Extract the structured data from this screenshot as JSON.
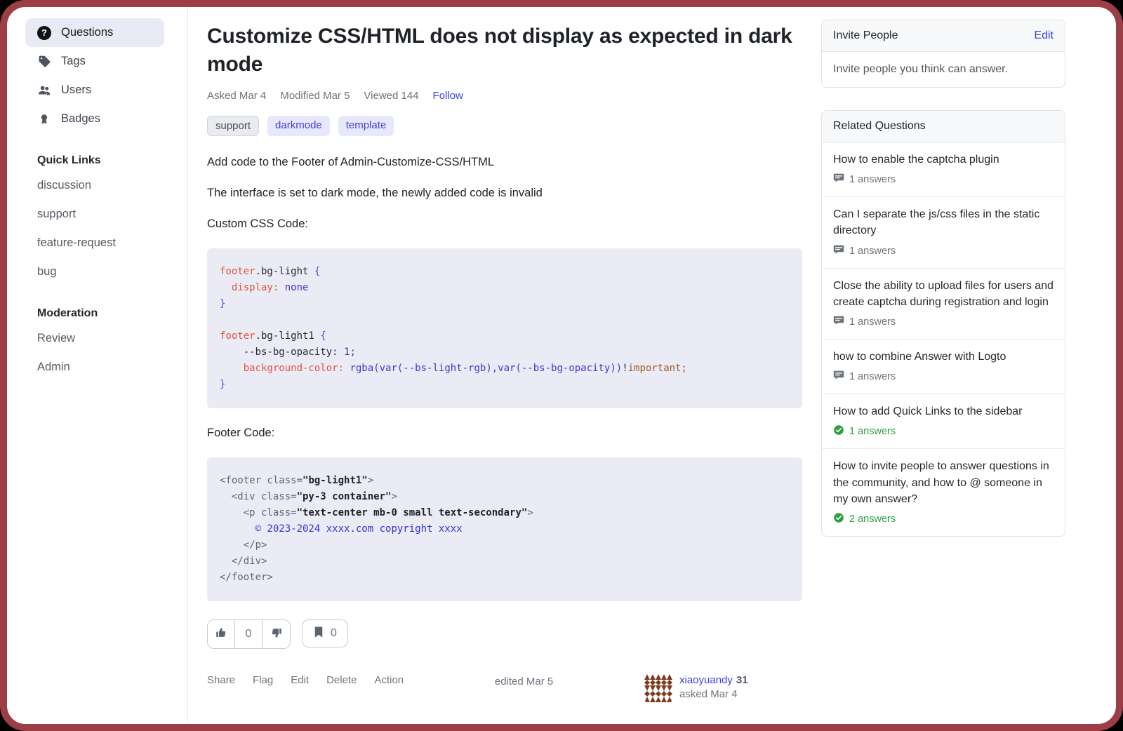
{
  "colors": {
    "accent_link": "#3a42e0",
    "frame": "#9c3e46",
    "success_green": "#2f9e44",
    "code_background": "#eaebf4",
    "active_nav_background": "#e9eaf5",
    "avatar_brown": "#7b3c22"
  },
  "sidebar": {
    "nav": [
      {
        "label": "Questions",
        "icon": "question-circle-icon",
        "active": true
      },
      {
        "label": "Tags",
        "icon": "tag-icon",
        "active": false
      },
      {
        "label": "Users",
        "icon": "users-icon",
        "active": false
      },
      {
        "label": "Badges",
        "icon": "badge-icon",
        "active": false
      }
    ],
    "sections": [
      {
        "heading": "Quick Links",
        "links": [
          "discussion",
          "support",
          "feature-request",
          "bug"
        ]
      },
      {
        "heading": "Moderation",
        "links": [
          "Review",
          "Admin"
        ]
      }
    ]
  },
  "question": {
    "title": "Customize CSS/HTML does not display as expected in dark mode",
    "meta": {
      "asked": "Asked Mar 4",
      "modified": "Modified Mar 5",
      "viewed": "Viewed 144",
      "follow": "Follow"
    },
    "tags": [
      {
        "label": "support",
        "reserved": true
      },
      {
        "label": "darkmode",
        "reserved": false
      },
      {
        "label": "template",
        "reserved": false
      }
    ],
    "body": [
      "Add code to the Footer of Admin-Customize-CSS/HTML",
      "The interface is set to dark mode, the newly added code is invalid",
      "Custom CSS Code:",
      "Footer Code:"
    ],
    "votes": {
      "like_count": "0",
      "bookmark_count": "0"
    },
    "actions": [
      "Share",
      "Flag",
      "Edit",
      "Delete",
      "Action"
    ],
    "edited": "edited Mar 5",
    "author": {
      "name": "xiaoyuandy",
      "reputation": "31",
      "asked": "asked Mar 4"
    }
  },
  "code_blocks": [
    {
      "language": "css",
      "lines": [
        [
          {
            "t": "footer",
            "c": "red"
          },
          {
            "t": ".bg-light ",
            "c": "ink"
          },
          {
            "t": "{",
            "c": "brace"
          }
        ],
        [
          {
            "t": "  ",
            "c": "ink"
          },
          {
            "t": "display:",
            "c": "red"
          },
          {
            "t": " ",
            "c": "ink"
          },
          {
            "t": "none",
            "c": "blue"
          }
        ],
        [
          {
            "t": "}",
            "c": "brace"
          }
        ],
        [],
        [
          {
            "t": "footer",
            "c": "red"
          },
          {
            "t": ".bg-light1 ",
            "c": "ink"
          },
          {
            "t": "{",
            "c": "brace"
          }
        ],
        [
          {
            "t": "    ",
            "c": "ink"
          },
          {
            "t": "--bs-bg-opacity:",
            "c": "navy"
          },
          {
            "t": " ",
            "c": "ink"
          },
          {
            "t": "1;",
            "c": "darkblue"
          }
        ],
        [
          {
            "t": "    ",
            "c": "ink"
          },
          {
            "t": "background-color:",
            "c": "red"
          },
          {
            "t": " ",
            "c": "ink"
          },
          {
            "t": "rgba(var(--bs-light-rgb),var(--bs-bg-opacity))",
            "c": "blue"
          },
          {
            "t": "!",
            "c": "ink"
          },
          {
            "t": "important;",
            "c": "brown"
          }
        ],
        [
          {
            "t": "}",
            "c": "brace"
          }
        ]
      ]
    },
    {
      "language": "html",
      "lines": [
        [
          {
            "t": "<footer class=",
            "c": "gray"
          },
          {
            "t": "\"bg-light1\"",
            "c": "attr"
          },
          {
            "t": ">",
            "c": "gray"
          }
        ],
        [
          {
            "t": "  <div class=",
            "c": "gray"
          },
          {
            "t": "\"py-3 container\"",
            "c": "attr"
          },
          {
            "t": ">",
            "c": "gray"
          }
        ],
        [
          {
            "t": "    <p class=",
            "c": "gray"
          },
          {
            "t": "\"text-center mb-0 small text-secondary\"",
            "c": "attr"
          },
          {
            "t": ">",
            "c": "gray"
          }
        ],
        [
          {
            "t": "      ",
            "c": "ink"
          },
          {
            "t": "© 2023-2024 xxxx.com copyright xxxx",
            "c": "linkblue"
          }
        ],
        [
          {
            "t": "    </p>",
            "c": "gray"
          }
        ],
        [
          {
            "t": "  </div>",
            "c": "gray"
          }
        ],
        [
          {
            "t": "</footer>",
            "c": "gray"
          }
        ]
      ]
    }
  ],
  "invite_card": {
    "title": "Invite People",
    "edit": "Edit",
    "body": "Invite people you think can answer."
  },
  "related": {
    "heading": "Related Questions",
    "items": [
      {
        "title": "How to enable the captcha plugin",
        "answers": "1 answers",
        "status": "answered"
      },
      {
        "title": "Can I separate the js/css files in the static directory",
        "answers": "1 answers",
        "status": "answered"
      },
      {
        "title": "Close the ability to upload files for users and create captcha during registration and login",
        "answers": "1 answers",
        "status": "answered"
      },
      {
        "title": "how to combine Answer with Logto",
        "answers": "1 answers",
        "status": "answered"
      },
      {
        "title": "How to add Quick Links to the sidebar",
        "answers": "1 answers",
        "status": "accepted"
      },
      {
        "title": "How to invite people to answer questions in the community, and how to @ someone in my own answer?",
        "answers": "2 answers",
        "status": "accepted"
      }
    ]
  }
}
